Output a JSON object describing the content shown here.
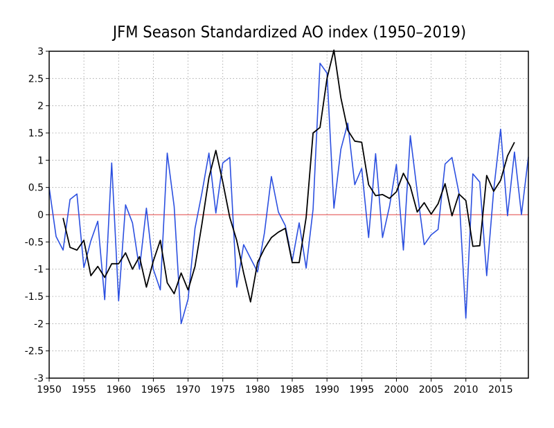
{
  "chart_data": {
    "type": "line",
    "title": "JFM Season Standardized AO index (1950–2019)",
    "xlim": [
      1950,
      2019
    ],
    "ylim": [
      -3,
      3
    ],
    "x_ticks": [
      1950,
      1955,
      1960,
      1965,
      1970,
      1975,
      1980,
      1985,
      1990,
      1995,
      2000,
      2005,
      2010,
      2015
    ],
    "y_ticks": [
      -3,
      -2.5,
      -2,
      -1.5,
      -1,
      -0.5,
      0,
      0.5,
      1,
      1.5,
      2,
      2.5,
      3
    ],
    "grid": true,
    "zero_line": true,
    "series": [
      {
        "color": "#2b4fe0",
        "x": [
          1950,
          1951,
          1952,
          1953,
          1954,
          1955,
          1956,
          1957,
          1958,
          1959,
          1960,
          1961,
          1962,
          1963,
          1964,
          1965,
          1966,
          1967,
          1968,
          1969,
          1970,
          1971,
          1972,
          1973,
          1974,
          1975,
          1976,
          1977,
          1978,
          1979,
          1980,
          1981,
          1982,
          1983,
          1984,
          1985,
          1986,
          1987,
          1988,
          1989,
          1990,
          1991,
          1992,
          1993,
          1994,
          1995,
          1996,
          1997,
          1998,
          1999,
          2000,
          2001,
          2002,
          2003,
          2004,
          2005,
          2006,
          2007,
          2008,
          2009,
          2010,
          2011,
          2012,
          2013,
          2014,
          2015,
          2016,
          2017,
          2018,
          2019
        ],
        "values": [
          0.5,
          -0.4,
          -0.65,
          0.28,
          0.38,
          -0.97,
          -0.48,
          -0.12,
          -1.56,
          0.95,
          -1.58,
          0.18,
          -0.15,
          -1.0,
          0.12,
          -1.0,
          -1.38,
          1.13,
          0.15,
          -2.0,
          -1.55,
          -0.25,
          0.4,
          1.13,
          0.03,
          0.95,
          1.05,
          -1.33,
          -0.55,
          -0.8,
          -1.05,
          -0.33,
          0.7,
          0.05,
          -0.2,
          -0.85,
          -0.15,
          -0.98,
          0.1,
          2.78,
          2.6,
          0.12,
          1.2,
          1.68,
          0.55,
          0.85,
          -0.42,
          1.12,
          -0.42,
          0.15,
          0.92,
          -0.65,
          1.45,
          0.42,
          -0.55,
          -0.37,
          -0.27,
          0.93,
          1.05,
          0.4,
          -1.9,
          0.75,
          0.6,
          -1.12,
          0.45,
          1.57,
          -0.02,
          1.15,
          0.0,
          1.06
        ]
      },
      {
        "color": "#000000",
        "x": [
          1952,
          1953,
          1954,
          1955,
          1956,
          1957,
          1958,
          1959,
          1960,
          1961,
          1962,
          1963,
          1964,
          1965,
          1966,
          1967,
          1968,
          1969,
          1970,
          1971,
          1972,
          1973,
          1974,
          1975,
          1976,
          1977,
          1978,
          1979,
          1980,
          1981,
          1982,
          1983,
          1984,
          1985,
          1986,
          1987,
          1988,
          1989,
          1990,
          1991,
          1992,
          1993,
          1994,
          1995,
          1996,
          1997,
          1998,
          1999,
          2000,
          2001,
          2002,
          2003,
          2004,
          2005,
          2006,
          2007,
          2008,
          2009,
          2010,
          2011,
          2012,
          2013,
          2014,
          2015,
          2016,
          2017
        ],
        "values": [
          -0.06,
          -0.6,
          -0.65,
          -0.47,
          -1.12,
          -0.95,
          -1.15,
          -0.9,
          -0.9,
          -0.7,
          -1.0,
          -0.77,
          -1.33,
          -0.85,
          -0.47,
          -1.25,
          -1.45,
          -1.07,
          -1.38,
          -0.95,
          -0.17,
          0.68,
          1.18,
          0.6,
          -0.05,
          -0.47,
          -1.07,
          -1.6,
          -0.88,
          -0.62,
          -0.42,
          -0.32,
          -0.25,
          -0.88,
          -0.88,
          -0.05,
          1.5,
          1.6,
          2.5,
          3.02,
          2.15,
          1.55,
          1.35,
          1.33,
          0.55,
          0.35,
          0.37,
          0.3,
          0.42,
          0.76,
          0.52,
          0.05,
          0.22,
          0.01,
          0.2,
          0.57,
          -0.02,
          0.38,
          0.26,
          -0.58,
          -0.57,
          0.72,
          0.43,
          0.63,
          1.08,
          1.33
        ]
      },
      {
        "color": "#e04040",
        "x": [
          1950,
          2019
        ],
        "values": [
          0,
          0
        ]
      }
    ]
  }
}
